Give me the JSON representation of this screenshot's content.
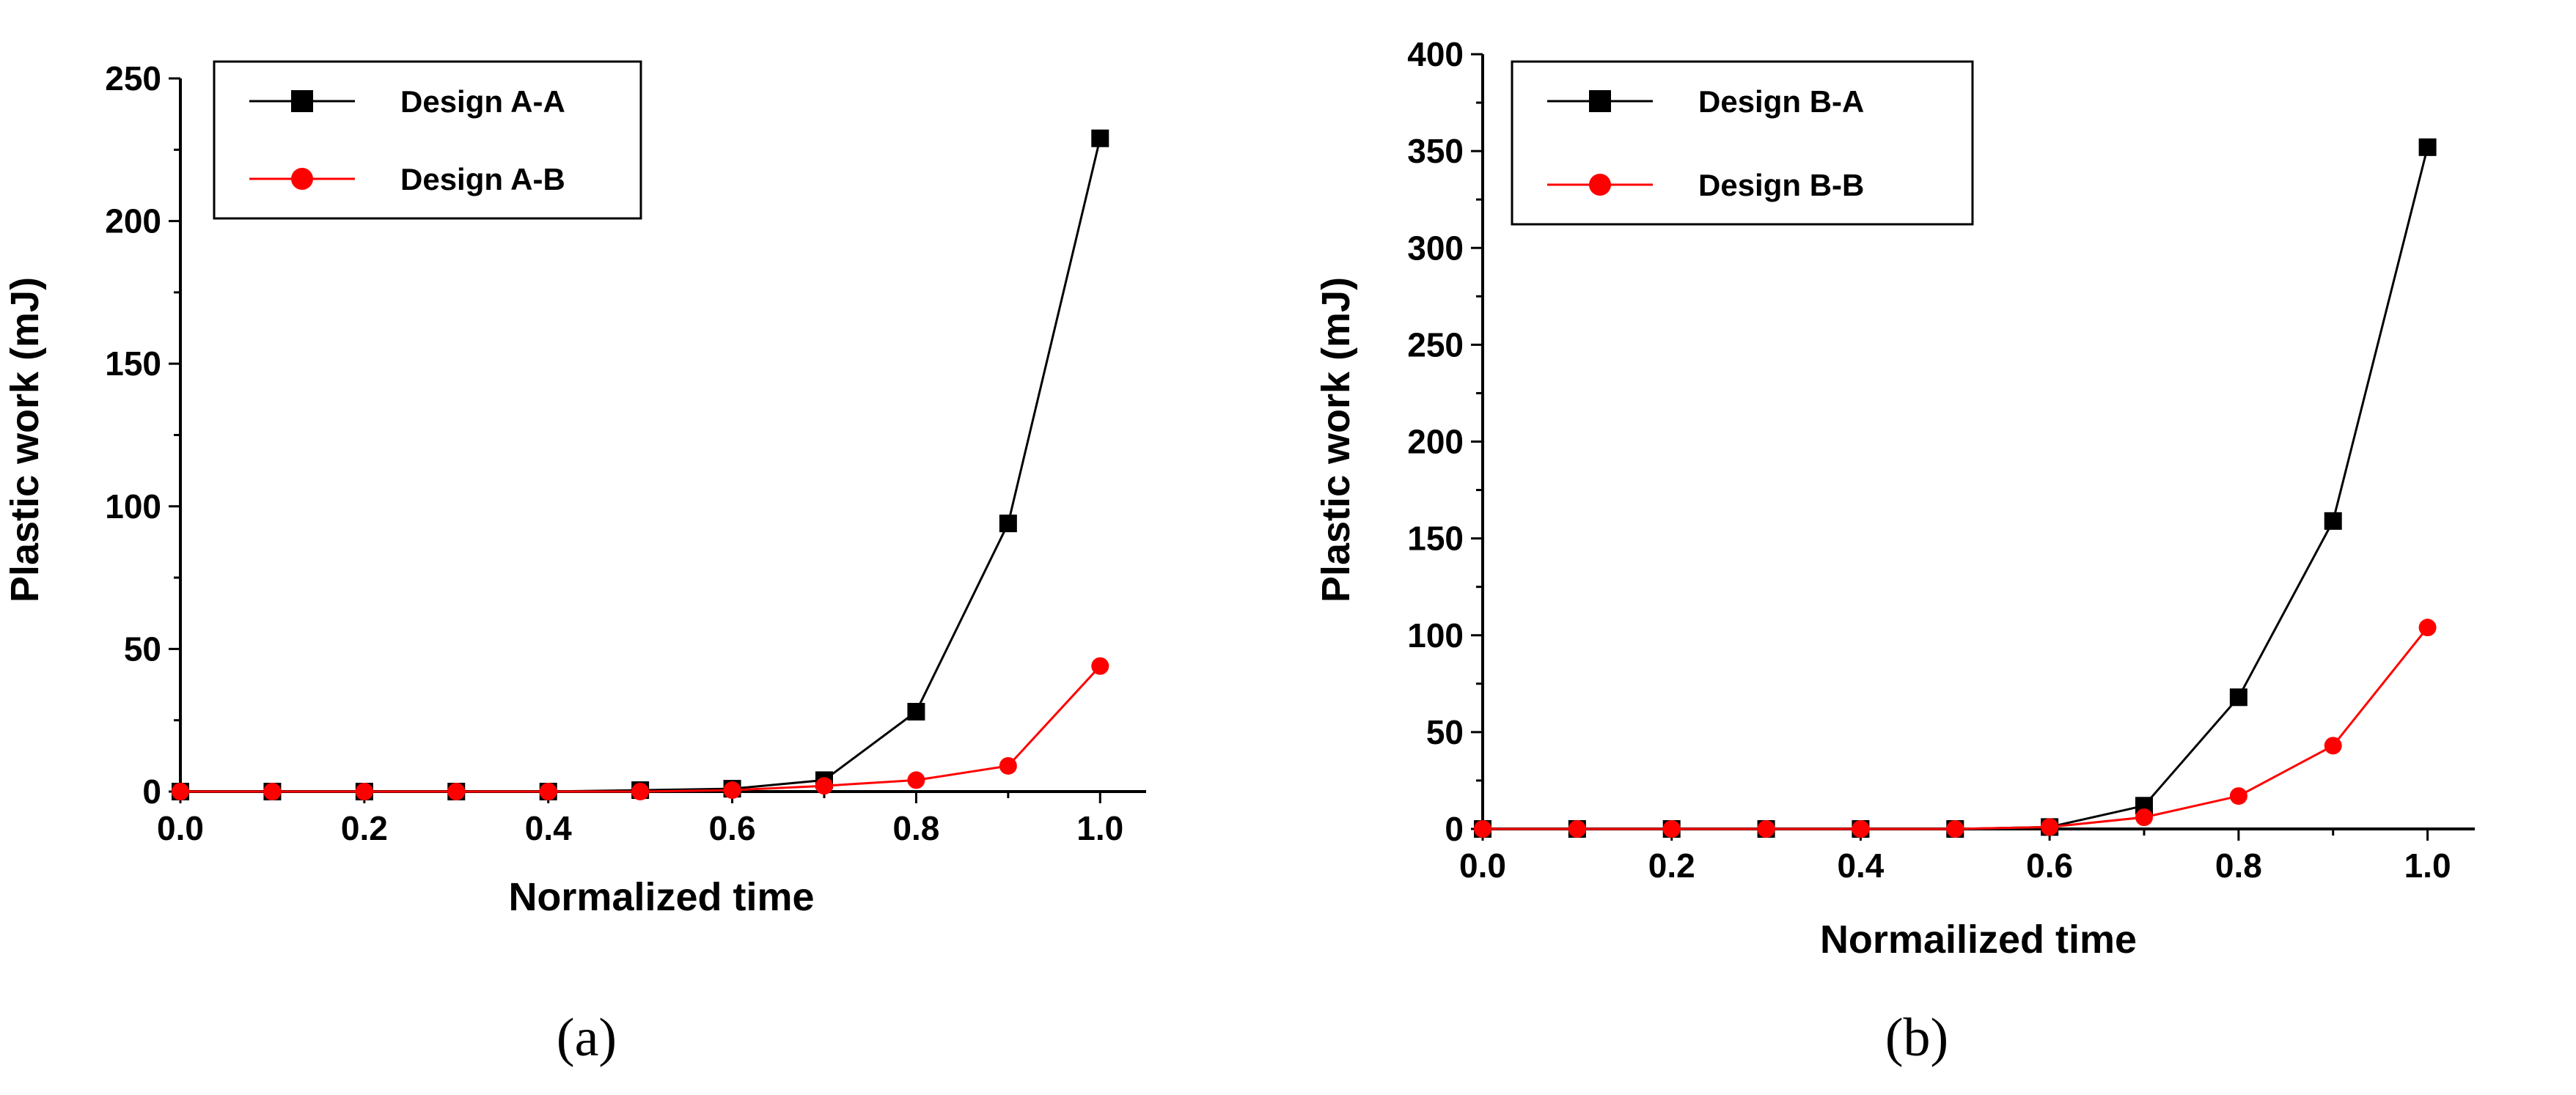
{
  "chart_data": [
    {
      "type": "line",
      "caption": "(a)",
      "xlabel": "Normalized time",
      "ylabel": "Plastic work (mJ)",
      "xlim": [
        0.0,
        1.05
      ],
      "ylim": [
        0,
        250
      ],
      "xticks": [
        "0.0",
        "0.2",
        "0.4",
        "0.6",
        "0.8",
        "1.0"
      ],
      "yticks": [
        "0",
        "50",
        "100",
        "150",
        "200",
        "250"
      ],
      "legend_position": "top-left",
      "x": [
        0.0,
        0.1,
        0.2,
        0.3,
        0.4,
        0.5,
        0.6,
        0.7,
        0.8,
        0.9,
        1.0
      ],
      "series": [
        {
          "name": "Design A-A",
          "color": "#000000",
          "marker": "square",
          "values": [
            0,
            0,
            0,
            0,
            0,
            0.5,
            1,
            4,
            28,
            94,
            229
          ]
        },
        {
          "name": "Design A-B",
          "color": "#ff0000",
          "marker": "circle",
          "values": [
            0,
            0,
            0,
            0,
            0,
            0,
            0.5,
            2,
            4,
            9,
            44
          ]
        }
      ]
    },
    {
      "type": "line",
      "caption": "(b)",
      "xlabel": "Normailized time",
      "ylabel": "Plastic work (mJ)",
      "xlim": [
        0.0,
        1.05
      ],
      "ylim": [
        0,
        400
      ],
      "xticks": [
        "0.0",
        "0.2",
        "0.4",
        "0.6",
        "0.8",
        "1.0"
      ],
      "yticks": [
        "0",
        "50",
        "100",
        "150",
        "200",
        "250",
        "300",
        "350",
        "400"
      ],
      "legend_position": "top-left",
      "x": [
        0.0,
        0.1,
        0.2,
        0.3,
        0.4,
        0.5,
        0.6,
        0.7,
        0.8,
        0.9,
        1.0
      ],
      "series": [
        {
          "name": "Design B-A",
          "color": "#000000",
          "marker": "square",
          "values": [
            0,
            0,
            0,
            0,
            0,
            0,
            1,
            12,
            68,
            159,
            352
          ]
        },
        {
          "name": "Design B-B",
          "color": "#ff0000",
          "marker": "circle",
          "values": [
            0,
            0,
            0,
            0,
            0,
            0,
            1,
            6,
            17,
            43,
            104
          ]
        }
      ]
    }
  ]
}
